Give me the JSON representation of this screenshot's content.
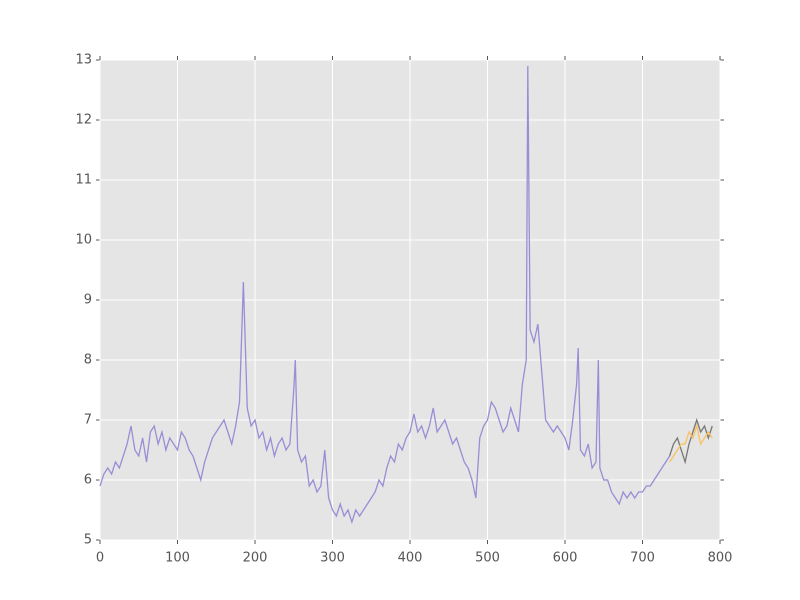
{
  "chart_data": {
    "type": "line",
    "series": [
      {
        "color": "#988ED5",
        "x": [
          0,
          5,
          10,
          15,
          20,
          25,
          30,
          35,
          40,
          45,
          50,
          55,
          60,
          65,
          70,
          75,
          80,
          85,
          90,
          95,
          100,
          105,
          110,
          115,
          120,
          125,
          130,
          135,
          140,
          145,
          150,
          155,
          160,
          165,
          170,
          175,
          180,
          185,
          190,
          195,
          200,
          205,
          210,
          215,
          220,
          225,
          230,
          235,
          240,
          245,
          250,
          252,
          255,
          260,
          265,
          270,
          275,
          280,
          285,
          290,
          295,
          300,
          305,
          310,
          315,
          320,
          325,
          330,
          335,
          340,
          345,
          350,
          355,
          360,
          365,
          370,
          375,
          380,
          385,
          390,
          395,
          400,
          405,
          410,
          415,
          420,
          425,
          430,
          435,
          440,
          445,
          450,
          455,
          460,
          465,
          470,
          475,
          480,
          485,
          490,
          495,
          500,
          505,
          510,
          515,
          520,
          525,
          530,
          535,
          540,
          545,
          550,
          552,
          555,
          560,
          565,
          570,
          575,
          580,
          585,
          590,
          595,
          600,
          605,
          610,
          615,
          617,
          620,
          625,
          630,
          635,
          640,
          643,
          645,
          650,
          655,
          660,
          665,
          670,
          675,
          680,
          685,
          690,
          695,
          700,
          705,
          710,
          715,
          720,
          725,
          730,
          735
        ],
        "values": [
          5.9,
          6.1,
          6.2,
          6.1,
          6.3,
          6.2,
          6.4,
          6.6,
          6.9,
          6.5,
          6.4,
          6.7,
          6.3,
          6.8,
          6.9,
          6.6,
          6.8,
          6.5,
          6.7,
          6.6,
          6.5,
          6.8,
          6.7,
          6.5,
          6.4,
          6.2,
          6.0,
          6.3,
          6.5,
          6.7,
          6.8,
          6.9,
          7.0,
          6.8,
          6.6,
          6.9,
          7.3,
          9.3,
          7.2,
          6.9,
          7.0,
          6.7,
          6.8,
          6.5,
          6.7,
          6.4,
          6.6,
          6.7,
          6.5,
          6.6,
          7.5,
          8.0,
          6.5,
          6.3,
          6.4,
          5.9,
          6.0,
          5.8,
          5.9,
          6.5,
          5.7,
          5.5,
          5.4,
          5.6,
          5.4,
          5.5,
          5.3,
          5.5,
          5.4,
          5.5,
          5.6,
          5.7,
          5.8,
          6.0,
          5.9,
          6.2,
          6.4,
          6.3,
          6.6,
          6.5,
          6.7,
          6.8,
          7.1,
          6.8,
          6.9,
          6.7,
          6.9,
          7.2,
          6.8,
          6.9,
          7.0,
          6.8,
          6.6,
          6.7,
          6.5,
          6.3,
          6.2,
          6.0,
          5.7,
          6.7,
          6.9,
          7.0,
          7.3,
          7.2,
          7.0,
          6.8,
          6.9,
          7.2,
          7.0,
          6.8,
          7.6,
          8.0,
          12.9,
          8.5,
          8.3,
          8.6,
          7.8,
          7.0,
          6.9,
          6.8,
          6.9,
          6.8,
          6.7,
          6.5,
          7.0,
          7.6,
          8.2,
          6.5,
          6.4,
          6.6,
          6.2,
          6.3,
          8.0,
          6.2,
          6.0,
          6.0,
          5.8,
          5.7,
          5.6,
          5.8,
          5.7,
          5.8,
          5.7,
          5.8,
          5.8,
          5.9,
          5.9,
          6.0,
          6.1,
          6.2,
          6.3,
          6.4
        ]
      },
      {
        "color": "#777777",
        "x": [
          735,
          740,
          745,
          750,
          755,
          760,
          765,
          770,
          775,
          780,
          785,
          790
        ],
        "values": [
          6.4,
          6.6,
          6.7,
          6.5,
          6.3,
          6.6,
          6.8,
          7.0,
          6.8,
          6.9,
          6.7,
          6.9
        ]
      },
      {
        "color": "#FBC15E",
        "x": [
          735,
          740,
          745,
          750,
          755,
          760,
          765,
          770,
          775,
          780,
          785,
          790
        ],
        "values": [
          6.3,
          6.4,
          6.5,
          6.6,
          6.6,
          6.8,
          6.7,
          6.9,
          6.6,
          6.7,
          6.8,
          6.7
        ]
      }
    ],
    "xlim": [
      0,
      800
    ],
    "xticks": [
      0,
      100,
      200,
      300,
      400,
      500,
      600,
      700,
      800
    ],
    "ylim": [
      5,
      13
    ],
    "yticks": [
      5,
      6,
      7,
      8,
      9,
      10,
      11,
      12,
      13
    ],
    "grid": true
  }
}
